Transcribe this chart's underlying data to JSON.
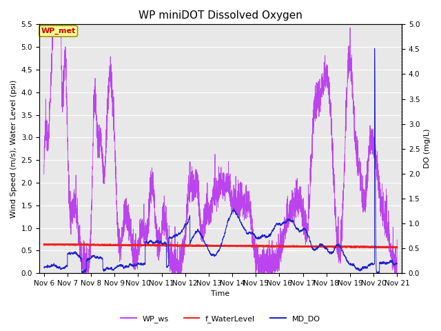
{
  "title": "WP miniDOT Dissolved Oxygen",
  "xlabel": "Time",
  "ylabel_left": "Wind Speed (m/s), Water Level (psi)",
  "ylabel_right": "DO (mg/L)",
  "ylim_left": [
    0,
    5.5
  ],
  "ylim_right": [
    0.0,
    5.0
  ],
  "yticks_left": [
    0.0,
    0.5,
    1.0,
    1.5,
    2.0,
    2.5,
    3.0,
    3.5,
    4.0,
    4.5,
    5.0,
    5.5
  ],
  "yticks_right": [
    0.0,
    0.5,
    1.0,
    1.5,
    2.0,
    2.5,
    3.0,
    3.5,
    4.0,
    4.5,
    5.0
  ],
  "wp_ws_color": "#BB44EE",
  "f_waterlevel_color": "#EE2222",
  "md_do_color": "#2222CC",
  "annotation_text": "WP_met",
  "annotation_bg": "#FFFF99",
  "annotation_border": "#999900",
  "annotation_text_color": "#CC0000",
  "legend_labels": [
    "WP_ws",
    "f_WaterLevel",
    "MD_DO"
  ],
  "background_color": "#E8E8E8",
  "grid_color": "#FFFFFF",
  "title_fontsize": 11,
  "axis_label_fontsize": 8,
  "tick_fontsize": 7.5
}
